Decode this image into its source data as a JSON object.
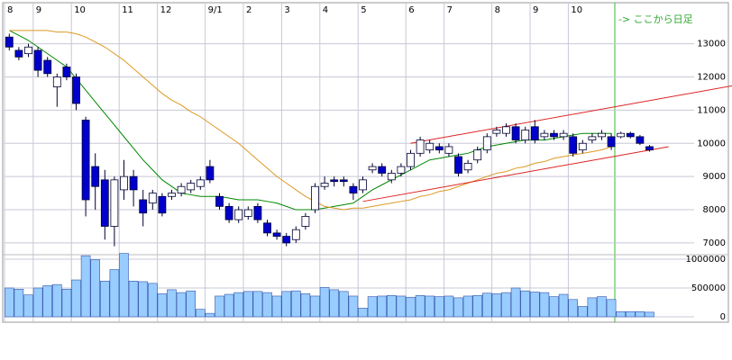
{
  "chart_data": {
    "type": "candlestick",
    "categories": [
      "8",
      null,
      null,
      "9",
      null,
      null,
      null,
      "10",
      null,
      null,
      null,
      null,
      "11",
      null,
      null,
      null,
      "12",
      null,
      null,
      null,
      null,
      "9/1",
      null,
      null,
      null,
      "2",
      null,
      null,
      null,
      "3",
      null,
      null,
      null,
      "4",
      null,
      null,
      null,
      "5",
      null,
      null,
      null,
      null,
      "6",
      null,
      null,
      null,
      "7",
      null,
      null,
      null,
      null,
      "8",
      null,
      null,
      null,
      "9",
      null,
      null,
      null,
      "10",
      null,
      null,
      null,
      null,
      null,
      null,
      null,
      null
    ],
    "open": [
      13200,
      12800,
      12700,
      12800,
      12500,
      11700,
      12300,
      12000,
      10700,
      9300,
      8900,
      7500,
      8600,
      9000,
      8300,
      8200,
      8400,
      8400,
      8500,
      8600,
      8700,
      9300,
      8400,
      8100,
      7700,
      7800,
      8100,
      7600,
      7300,
      7200,
      7100,
      7500,
      8000,
      8700,
      8900,
      8900,
      8700,
      8600,
      9200,
      9300,
      8900,
      9100,
      9300,
      9700,
      9800,
      9900,
      9700,
      9600,
      9200,
      9500,
      9800,
      10300,
      10300,
      10500,
      10100,
      10500,
      10200,
      10300,
      10200,
      10200,
      9800,
      10100,
      10200,
      10200,
      10200,
      10300,
      10200,
      9900
    ],
    "close": [
      12900,
      12600,
      12900,
      12200,
      12100,
      12000,
      12000,
      11200,
      8300,
      8700,
      7500,
      8900,
      9000,
      8600,
      7900,
      8500,
      7900,
      8500,
      8700,
      8800,
      8900,
      8900,
      8100,
      7700,
      8000,
      8000,
      7700,
      7300,
      7200,
      7000,
      7400,
      7800,
      8700,
      8800,
      8850,
      8850,
      8500,
      8900,
      9300,
      9100,
      9100,
      9300,
      9700,
      10100,
      10000,
      9800,
      9900,
      9100,
      9400,
      9800,
      10200,
      10400,
      10500,
      10100,
      10400,
      10100,
      10300,
      10200,
      10300,
      9700,
      10000,
      10200,
      10300,
      9900,
      10300,
      10200,
      10000,
      9800
    ],
    "high": [
      13300,
      12900,
      13000,
      12900,
      12600,
      12100,
      12400,
      12100,
      10800,
      9700,
      9200,
      9000,
      9500,
      9200,
      8600,
      8600,
      8500,
      8600,
      8800,
      8900,
      9000,
      9500,
      8500,
      8200,
      8100,
      8100,
      8200,
      7700,
      7400,
      7300,
      7500,
      7900,
      8800,
      9000,
      9000,
      9000,
      8800,
      9000,
      9400,
      9400,
      9200,
      9400,
      9800,
      10200,
      10100,
      10000,
      10000,
      9700,
      9500,
      9900,
      10300,
      10500,
      10600,
      10600,
      10500,
      10700,
      10400,
      10400,
      10400,
      10300,
      10100,
      10300,
      10400,
      10300,
      10350,
      10350,
      10250,
      9950
    ],
    "low": [
      12800,
      12500,
      12600,
      12000,
      12000,
      11100,
      11900,
      11000,
      7800,
      8000,
      7100,
      6900,
      8300,
      8100,
      7500,
      8000,
      7800,
      8300,
      8400,
      8500,
      8600,
      8800,
      8000,
      7600,
      7600,
      7700,
      7600,
      7200,
      7100,
      6900,
      7000,
      7400,
      7900,
      8600,
      8700,
      8700,
      8300,
      8500,
      9100,
      9000,
      8800,
      9000,
      9200,
      9600,
      9700,
      9700,
      9600,
      9000,
      9100,
      9400,
      9700,
      10200,
      10200,
      10000,
      10000,
      10000,
      10100,
      10100,
      10100,
      9600,
      9700,
      10000,
      10100,
      9800,
      10150,
      10150,
      9950,
      9750
    ],
    "volume": [
      500000,
      480000,
      380000,
      500000,
      540000,
      560000,
      480000,
      640000,
      1060000,
      990000,
      620000,
      820000,
      1100000,
      620000,
      610000,
      580000,
      400000,
      470000,
      420000,
      450000,
      130000,
      60000,
      360000,
      390000,
      420000,
      440000,
      440000,
      420000,
      360000,
      440000,
      450000,
      400000,
      360000,
      510000,
      470000,
      440000,
      360000,
      150000,
      350000,
      360000,
      370000,
      360000,
      340000,
      370000,
      360000,
      350000,
      360000,
      330000,
      360000,
      370000,
      410000,
      400000,
      420000,
      500000,
      450000,
      430000,
      420000,
      350000,
      390000,
      300000,
      180000,
      330000,
      350000,
      300000,
      90000,
      90000,
      90000,
      80000
    ],
    "up_color": "#ffffff",
    "down_color": "#0000cc",
    "volume_color": "#99ccff",
    "series": [
      {
        "color": "#008800",
        "values": [
          13400,
          13250,
          13100,
          12900,
          12700,
          12500,
          12300,
          11950,
          11600,
          11250,
          10900,
          10550,
          10200,
          9850,
          9500,
          9200,
          8900,
          8700,
          8500,
          8450,
          8400,
          8400,
          8400,
          8350,
          8300,
          8300,
          8300,
          8250,
          8200,
          8100,
          8000,
          8000,
          8000,
          8050,
          8100,
          8150,
          8200,
          8400,
          8600,
          8750,
          8900,
          9050,
          9200,
          9350,
          9500,
          9550,
          9600,
          9650,
          9700,
          9800,
          9900,
          9950,
          10000,
          10050,
          10100,
          10100,
          10100,
          10150,
          10200,
          10250,
          10300,
          10300,
          10300,
          10300,
          null,
          null,
          null,
          null
        ]
      },
      {
        "color": "#dd9922",
        "values": [
          13400,
          13400,
          13400,
          13400,
          13400,
          13350,
          13350,
          13300,
          13200,
          13050,
          12900,
          12700,
          12500,
          12250,
          12000,
          11750,
          11500,
          11300,
          11150,
          10950,
          10800,
          10600,
          10400,
          10200,
          10000,
          9750,
          9500,
          9250,
          9000,
          8800,
          8600,
          8400,
          8250,
          8100,
          8050,
          8000,
          8050,
          8050,
          8100,
          8150,
          8200,
          8250,
          8300,
          8400,
          8450,
          8550,
          8600,
          8700,
          8800,
          8900,
          9000,
          9100,
          9150,
          9250,
          9300,
          9400,
          9450,
          9550,
          9600,
          9650,
          9700,
          9750,
          9800,
          9900,
          null,
          null,
          null,
          null
        ]
      }
    ],
    "trendlines": [
      {
        "color": "#dd2222",
        "x": [
          42,
          76
        ],
        "values": [
          10000,
          11750
        ]
      },
      {
        "color": "#dd2222",
        "x": [
          37,
          69
        ],
        "values": [
          8250,
          9900
        ]
      }
    ],
    "annotation": "-> ここから日足",
    "ylim": [
      6700,
      14100
    ],
    "yticks": [
      7000,
      8000,
      9000,
      10000,
      11000,
      12000,
      13000
    ],
    "volume_ylim": [
      0,
      1100000
    ],
    "volume_yticks": [
      0,
      500000,
      1000000
    ],
    "grid": true
  }
}
